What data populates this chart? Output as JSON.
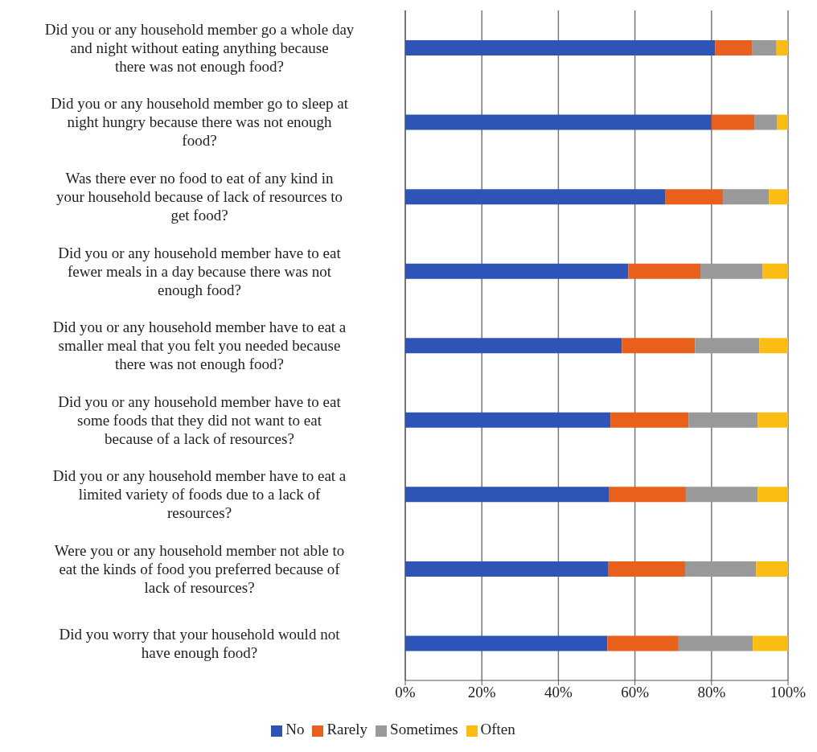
{
  "chart_data": {
    "type": "bar",
    "orientation": "horizontal",
    "stacked": true,
    "categories": [
      "Did you or any household member go a whole day and night without eating anything because there was not enough food?",
      "Did you or any household member go to sleep at night hungry because there was not enough food?",
      "Was there ever no food to eat of any kind in your household because of lack of resources to get food?",
      "Did you or any household member have to eat fewer meals in a day because there was not enough food?",
      "Did you or any household member have to eat a smaller meal that you felt you needed because there was not enough food?",
      "Did you or any household member have to eat some foods that they did not want to eat because of a lack of resources?",
      "Did you or any household member have to eat a limited variety of foods due to a lack of resources?",
      "Were you or any household member not able to eat the kinds of food you preferred because of lack of resources?",
      "Did you worry that your household would not have enough food?"
    ],
    "series": [
      {
        "name": "No",
        "color": "#2e54b8",
        "values": [
          81,
          80,
          68,
          58.3,
          56.6,
          53.6,
          53.3,
          53.1,
          52.8
        ]
      },
      {
        "name": "Rarely",
        "color": "#e8601c",
        "values": [
          9.7,
          11.2,
          15,
          18.8,
          19.1,
          20.4,
          20,
          20,
          18.6
        ]
      },
      {
        "name": "Sometimes",
        "color": "#999999",
        "values": [
          6.3,
          6,
          12,
          16.3,
          16.8,
          18.1,
          18.8,
          18.6,
          19.4
        ]
      },
      {
        "name": "Often",
        "color": "#fbbd14",
        "values": [
          3,
          2.8,
          5,
          6.6,
          7.5,
          7.9,
          7.9,
          8.3,
          9.2
        ]
      }
    ],
    "xlim": [
      0,
      100
    ],
    "xticks": [
      {
        "value": 0,
        "label": "0%"
      },
      {
        "value": 20,
        "label": "20%"
      },
      {
        "value": 40,
        "label": "40%"
      },
      {
        "value": 60,
        "label": "60%"
      },
      {
        "value": 80,
        "label": "80%"
      },
      {
        "value": 100,
        "label": "100%"
      }
    ],
    "grid": "x",
    "legend": "bottom"
  }
}
